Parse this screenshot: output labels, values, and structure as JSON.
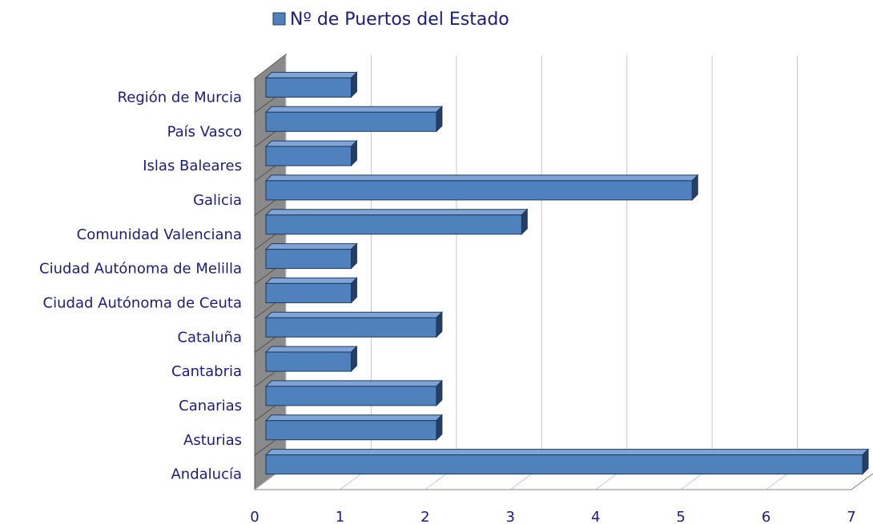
{
  "chart_data": {
    "type": "bar",
    "orientation": "horizontal",
    "categories": [
      "Andalucía",
      "Asturias",
      "Canarias",
      "Cantabria",
      "Cataluña",
      "Ciudad Autónoma de Ceuta",
      "Ciudad Autónoma de Melilla",
      "Comunidad Valenciana",
      "Galicia",
      "Islas Baleares",
      "País Vasco",
      "Región de Murcia"
    ],
    "series": [
      {
        "name": "Nº de Puertos del Estado",
        "color": "#4f81bd",
        "values": [
          7,
          2,
          2,
          1,
          2,
          1,
          1,
          3,
          5,
          1,
          2,
          1
        ]
      }
    ],
    "xlim": [
      0,
      7
    ],
    "xticks": [
      0,
      1,
      2,
      3,
      4,
      5,
      6,
      7
    ],
    "grid": true,
    "legend": "top"
  }
}
